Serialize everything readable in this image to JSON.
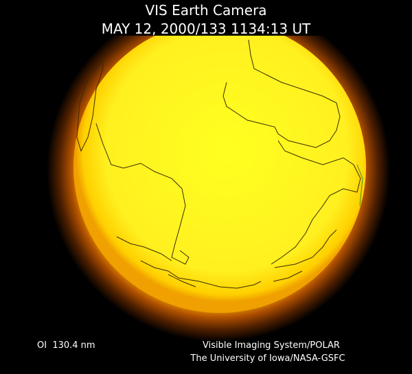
{
  "header": {
    "title": "VIS Earth Camera",
    "timestamp": "MAY 12, 2000/133 1134:13 UT"
  },
  "footer": {
    "filter": "OI  130.4 nm",
    "credit_lines": [
      "Visible Imaging System/POLAR",
      "The University of Iowa/NASA-GSFC"
    ]
  }
}
